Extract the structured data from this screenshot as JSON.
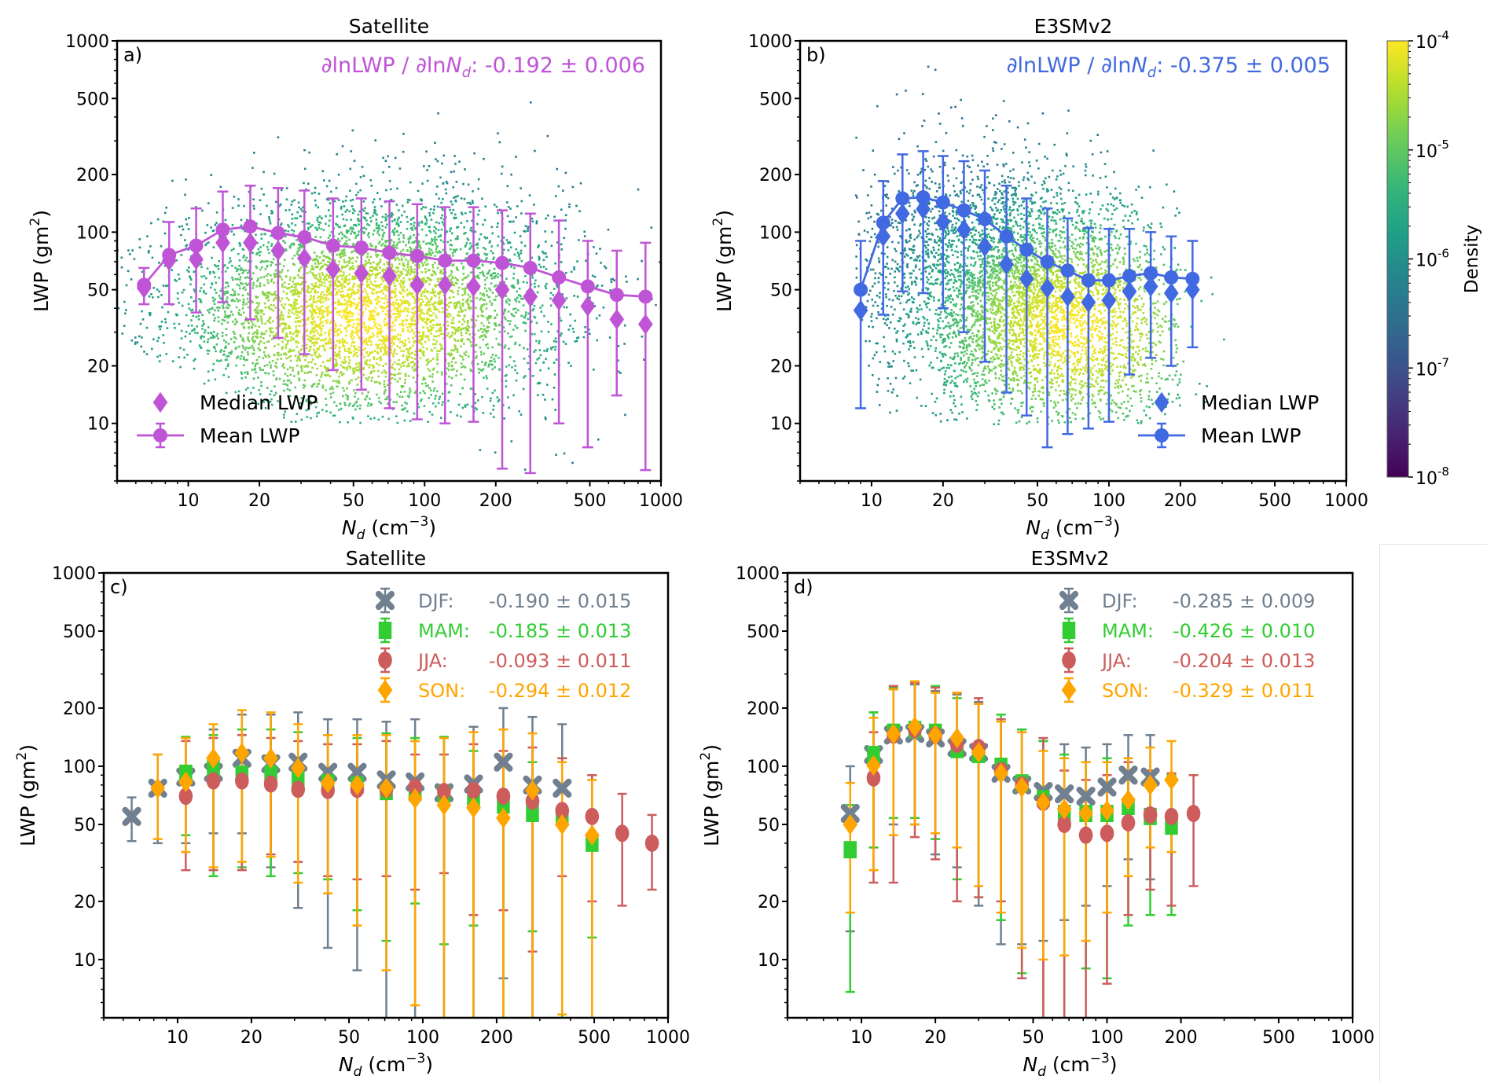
{
  "figure": {
    "colorbar": {
      "label": "Density",
      "scale": "log",
      "range": [
        1e-08,
        0.0001
      ],
      "tick_labels": [
        "10",
        "10",
        "10",
        "10",
        "10"
      ],
      "tick_exponents": [
        "-8",
        "-7",
        "-6",
        "-5",
        "-4"
      ],
      "colormap": "viridis"
    }
  },
  "chart_data": [
    {
      "id": "a",
      "type": "scatter",
      "panel_label": "a)",
      "title": "Satellite",
      "xlabel_main": "N",
      "xlabel_sub": "d",
      "xlabel_unit": " (cm",
      "xlabel_exp": "−3",
      "xlabel_close": ")",
      "ylabel": "LWP (gm",
      "ylabel_exp": "2",
      "ylabel_close": ")",
      "xscale": "log",
      "yscale": "log",
      "xlim": [
        5,
        1000
      ],
      "ylim": [
        5,
        1000
      ],
      "xticks": [
        10,
        20,
        50,
        100,
        200,
        500,
        1000
      ],
      "xtick_labels": [
        "10",
        "20",
        "50",
        "100",
        "200",
        "500",
        "1000"
      ],
      "yticks": [
        10,
        20,
        50,
        100,
        200,
        500,
        1000
      ],
      "ytick_labels": [
        "10",
        "20",
        "50",
        "100",
        "200",
        "500",
        "1000"
      ],
      "annotation": {
        "prefix": "∂lnLWP / ∂ln",
        "var": "N",
        "sub": "d",
        "value": ": -0.192 ± 0.006",
        "color": "#bf55d6"
      },
      "density_cloud": {
        "description": "2D density scatter colored by Density",
        "x_span": [
          5,
          1000
        ],
        "y_span": [
          5,
          700
        ]
      },
      "color": "#bf55d6",
      "legend": {
        "position": "lower-left",
        "entries": [
          {
            "label": "Median LWP",
            "marker": "diamond"
          },
          {
            "label": "Mean LWP",
            "marker": "circle-errorbar-line"
          }
        ]
      },
      "x": [
        6.5,
        8.3,
        10.8,
        14,
        18.3,
        24,
        31,
        41,
        54,
        71,
        93,
        122,
        161,
        213,
        280,
        370,
        490,
        650,
        860
      ],
      "series": [
        {
          "name": "Mean LWP",
          "values": [
            53,
            76,
            85,
            103,
            107,
            99,
            94,
            85,
            83,
            78,
            75,
            71,
            71,
            69,
            65,
            58,
            52,
            47,
            46
          ],
          "err_low": [
            42,
            42,
            38,
            43,
            35,
            28,
            23,
            19,
            15,
            12,
            10.5,
            10,
            10.2,
            5.8,
            5.5,
            10,
            7.5,
            14,
            5.7
          ],
          "err_high": [
            65,
            113,
            133,
            163,
            175,
            170,
            165,
            150,
            150,
            145,
            140,
            135,
            135,
            130,
            125,
            115,
            90,
            80,
            88
          ]
        },
        {
          "name": "Median LWP",
          "values": [
            51,
            71,
            72,
            88,
            88,
            80,
            73,
            64,
            61,
            59,
            53,
            53,
            52,
            50,
            46,
            44,
            41,
            35,
            33
          ]
        }
      ]
    },
    {
      "id": "b",
      "type": "scatter",
      "panel_label": "b)",
      "title": "E3SMv2",
      "xlabel_main": "N",
      "xlabel_sub": "d",
      "xlabel_unit": " (cm",
      "xlabel_exp": "−3",
      "xlabel_close": ")",
      "ylabel": "LWP (gm",
      "ylabel_exp": "2",
      "ylabel_close": ")",
      "xscale": "log",
      "yscale": "log",
      "xlim": [
        5,
        1000
      ],
      "ylim": [
        5,
        1000
      ],
      "xticks": [
        10,
        20,
        50,
        100,
        200,
        500,
        1000
      ],
      "xtick_labels": [
        "10",
        "20",
        "50",
        "100",
        "200",
        "500",
        "1000"
      ],
      "yticks": [
        10,
        20,
        50,
        100,
        200,
        500,
        1000
      ],
      "ytick_labels": [
        "10",
        "20",
        "50",
        "100",
        "200",
        "500",
        "1000"
      ],
      "annotation": {
        "prefix": "∂lnLWP / ∂ln",
        "var": "N",
        "sub": "d",
        "value": ": -0.375 ± 0.005",
        "color": "#4169e1"
      },
      "density_cloud": {
        "description": "2D density scatter colored by Density",
        "x_span": [
          8,
          350
        ],
        "y_span": [
          10,
          600
        ]
      },
      "color": "#4169e1",
      "legend": {
        "position": "lower-right",
        "entries": [
          {
            "label": "Median LWP",
            "marker": "diamond"
          },
          {
            "label": "Mean LWP",
            "marker": "circle-errorbar-line"
          }
        ]
      },
      "x": [
        9,
        11.2,
        13.5,
        16.5,
        20,
        24.5,
        30,
        37,
        45,
        55,
        67,
        82,
        100,
        122,
        150,
        183,
        225
      ],
      "series": [
        {
          "name": "Mean LWP",
          "values": [
            50,
            112,
            150,
            152,
            143,
            130,
            117,
            95,
            81,
            70,
            63,
            56,
            56,
            59,
            61,
            58,
            57
          ],
          "err_low": [
            12,
            37,
            49,
            48,
            40,
            30,
            21,
            14.5,
            11,
            7.5,
            8.8,
            9.4,
            10.2,
            18,
            22,
            20,
            25
          ],
          "err_high": [
            90,
            185,
            255,
            265,
            250,
            235,
            210,
            175,
            150,
            133,
            118,
            105,
            104,
            104,
            100,
            95,
            90
          ]
        },
        {
          "name": "Median LWP",
          "values": [
            39,
            95,
            125,
            132,
            113,
            103,
            84,
            68,
            57,
            51,
            46,
            43,
            44,
            49,
            52,
            48,
            50
          ]
        }
      ]
    },
    {
      "id": "c",
      "type": "scatter",
      "panel_label": "c)",
      "title": "Satellite",
      "xlabel_main": "N",
      "xlabel_sub": "d",
      "xlabel_unit": " (cm",
      "xlabel_exp": "−3",
      "xlabel_close": ")",
      "ylabel": "LWP (gm",
      "ylabel_exp": "2",
      "ylabel_close": ")",
      "xscale": "log",
      "yscale": "log",
      "xlim": [
        5,
        1000
      ],
      "ylim": [
        5,
        1000
      ],
      "xticks": [
        10,
        20,
        50,
        100,
        200,
        500,
        1000
      ],
      "xtick_labels": [
        "10",
        "20",
        "50",
        "100",
        "200",
        "500",
        "1000"
      ],
      "yticks": [
        10,
        20,
        50,
        100,
        200,
        500,
        1000
      ],
      "ytick_labels": [
        "10",
        "20",
        "50",
        "100",
        "200",
        "500",
        "1000"
      ],
      "legend": {
        "position": "upper-right"
      },
      "series": [
        {
          "name": "DJF",
          "label": "DJF:",
          "stat": "-0.190 ± 0.015",
          "color": "#708090",
          "marker": "x",
          "x": [
            6.5,
            8.3,
            10.8,
            14,
            18.3,
            24,
            31,
            41,
            54,
            71,
            93,
            122,
            161,
            213,
            280,
            370
          ],
          "values": [
            55,
            77,
            88,
            93,
            110,
            103,
            105,
            93,
            93,
            85,
            83,
            73,
            81,
            105,
            80,
            77
          ],
          "err_low": [
            41,
            40,
            40,
            45,
            45,
            30,
            18.5,
            11.5,
            8.8,
            3,
            3,
            3,
            3,
            8,
            3,
            3
          ],
          "err_high": [
            69,
            115,
            140,
            155,
            185,
            185,
            190,
            175,
            175,
            170,
            175,
            140,
            160,
            200,
            180,
            165
          ]
        },
        {
          "name": "MAM",
          "label": "MAM:",
          "stat": "-0.185 ± 0.013",
          "color": "#32cd32",
          "marker": "square",
          "x": [
            10.8,
            14,
            18.3,
            24,
            31,
            41,
            54,
            71,
            93,
            122,
            161,
            213,
            280,
            370,
            490
          ],
          "values": [
            92,
            98,
            91,
            91,
            85,
            82,
            80,
            74,
            73,
            72,
            67,
            63,
            57,
            55,
            40
          ],
          "err_low": [
            44,
            27,
            30,
            27,
            28,
            26,
            18,
            12.5,
            19.5,
            12,
            15,
            3,
            14,
            3,
            13
          ],
          "err_high": [
            142,
            145,
            155,
            155,
            150,
            145,
            140,
            148,
            140,
            142,
            120,
            110,
            105,
            110,
            90
          ]
        },
        {
          "name": "JJA",
          "label": "JJA:",
          "stat": "-0.093 ± 0.011",
          "color": "#cd5c5c",
          "marker": "circle",
          "x": [
            10.8,
            14,
            18.3,
            24,
            31,
            41,
            54,
            71,
            93,
            122,
            161,
            213,
            280,
            370,
            490,
            650,
            860
          ],
          "values": [
            70,
            84,
            84,
            81,
            76,
            75,
            76,
            76,
            78,
            74,
            75,
            70,
            66,
            59,
            55,
            45,
            40
          ],
          "err_low": [
            29,
            29,
            29,
            35,
            32,
            27,
            26,
            27,
            23,
            28,
            17,
            18,
            11,
            27,
            20,
            19,
            23
          ],
          "err_high": [
            135,
            140,
            145,
            140,
            135,
            130,
            130,
            135,
            115,
            115,
            130,
            120,
            125,
            110,
            90,
            72,
            56
          ]
        },
        {
          "name": "SON",
          "label": "SON:",
          "stat": "-0.294 ± 0.012",
          "color": "#ffa500",
          "marker": "diamond",
          "x": [
            8.3,
            10.8,
            14,
            18.3,
            24,
            31,
            41,
            54,
            71,
            93,
            122,
            161,
            213,
            280,
            370,
            490
          ],
          "values": [
            77,
            83,
            110,
            117,
            110,
            98,
            82,
            80,
            77,
            68,
            63,
            61,
            54,
            75,
            50,
            44
          ],
          "err_low": [
            42,
            36,
            30,
            32,
            34,
            25,
            22,
            15,
            8.8,
            5.8,
            3,
            3,
            3,
            3,
            5.2,
            3
          ],
          "err_high": [
            115,
            140,
            165,
            195,
            190,
            165,
            145,
            145,
            145,
            135,
            140,
            150,
            155,
            148,
            105,
            85
          ]
        }
      ]
    },
    {
      "id": "d",
      "type": "scatter",
      "panel_label": "d)",
      "title": "E3SMv2",
      "xlabel_main": "N",
      "xlabel_sub": "d",
      "xlabel_unit": " (cm",
      "xlabel_exp": "−3",
      "xlabel_close": ")",
      "ylabel": "LWP (gm",
      "ylabel_exp": "2",
      "ylabel_close": ")",
      "xscale": "log",
      "yscale": "log",
      "xlim": [
        5,
        1000
      ],
      "ylim": [
        5,
        1000
      ],
      "xticks": [
        10,
        20,
        50,
        100,
        200,
        500,
        1000
      ],
      "xtick_labels": [
        "10",
        "20",
        "50",
        "100",
        "200",
        "500",
        "1000"
      ],
      "yticks": [
        10,
        20,
        50,
        100,
        200,
        500,
        1000
      ],
      "ytick_labels": [
        "10",
        "20",
        "50",
        "100",
        "200",
        "500",
        "1000"
      ],
      "legend": {
        "position": "upper-right"
      },
      "series": [
        {
          "name": "DJF",
          "label": "DJF:",
          "stat": "-0.285 ± 0.009",
          "color": "#708090",
          "marker": "x",
          "x": [
            9,
            11.2,
            13.5,
            16.5,
            20,
            24.5,
            30,
            37,
            45,
            55,
            67,
            82,
            100,
            122,
            150
          ],
          "values": [
            57,
            115,
            145,
            148,
            140,
            125,
            118,
            92,
            80,
            74,
            72,
            70,
            78,
            90,
            88
          ],
          "err_low": [
            14,
            38,
            50,
            50,
            35,
            30,
            19,
            12,
            12,
            12.5,
            16,
            19,
            24,
            33,
            26
          ],
          "err_high": [
            100,
            190,
            250,
            265,
            245,
            235,
            215,
            175,
            155,
            135,
            130,
            125,
            130,
            145,
            145
          ]
        },
        {
          "name": "MAM",
          "label": "MAM:",
          "stat": "-0.426 ± 0.010",
          "color": "#32cd32",
          "marker": "square",
          "x": [
            9,
            11.2,
            13.5,
            16.5,
            20,
            24.5,
            30,
            37,
            45,
            55,
            67,
            82,
            100,
            122,
            150,
            183
          ],
          "values": [
            37,
            115,
            150,
            155,
            150,
            122,
            115,
            100,
            82,
            68,
            57,
            57,
            57,
            62,
            55,
            49
          ],
          "err_low": [
            6.8,
            38,
            54,
            54,
            42,
            26,
            21,
            16,
            8.5,
            3,
            3,
            9,
            8,
            15,
            17,
            17
          ],
          "err_high": [
            63,
            190,
            255,
            275,
            260,
            225,
            210,
            185,
            155,
            135,
            115,
            105,
            110,
            110,
            95,
            90
          ]
        },
        {
          "name": "JJA",
          "label": "JJA:",
          "stat": "-0.204 ± 0.013",
          "color": "#cd5c5c",
          "marker": "circle",
          "x": [
            11.2,
            13.5,
            16.5,
            20,
            24.5,
            30,
            37,
            45,
            55,
            67,
            82,
            100,
            122,
            150,
            183,
            225
          ],
          "values": [
            87,
            145,
            155,
            145,
            130,
            125,
            95,
            80,
            65,
            50,
            44,
            45,
            51,
            56,
            55,
            57
          ],
          "err_low": [
            25,
            25,
            43,
            33,
            20,
            21,
            20,
            8,
            3,
            3,
            3,
            7.5,
            17,
            23,
            19,
            24
          ],
          "err_high": [
            150,
            260,
            270,
            255,
            240,
            225,
            175,
            150,
            140,
            95,
            85,
            90,
            105,
            95,
            92,
            90
          ]
        },
        {
          "name": "SON",
          "label": "SON:",
          "stat": "-0.329 ± 0.011",
          "color": "#ffa500",
          "marker": "diamond",
          "x": [
            9,
            11.2,
            13.5,
            16.5,
            20,
            24.5,
            30,
            37,
            45,
            55,
            67,
            82,
            100,
            122,
            150,
            183
          ],
          "values": [
            50,
            101,
            147,
            160,
            145,
            140,
            118,
            92,
            78,
            65,
            60,
            57,
            59,
            67,
            80,
            85
          ],
          "err_low": [
            17.5,
            29,
            44,
            50,
            45,
            38,
            24,
            17.5,
            11.5,
            10,
            10.5,
            12.5,
            17.5,
            27,
            38,
            36
          ],
          "err_high": [
            82,
            178,
            250,
            275,
            240,
            240,
            210,
            170,
            150,
            120,
            110,
            105,
            105,
            110,
            125,
            135
          ]
        }
      ]
    }
  ]
}
